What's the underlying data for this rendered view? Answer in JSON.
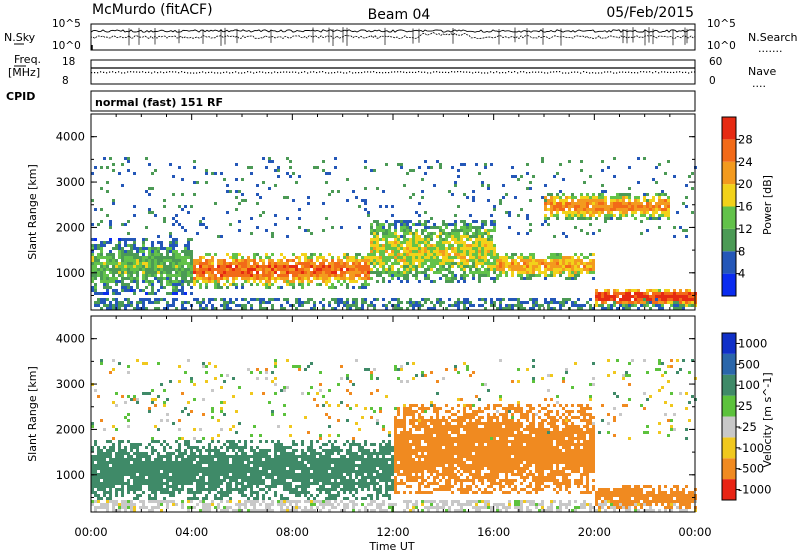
{
  "header": {
    "station": "McMurdo (fitACF)",
    "beam": "Beam 04",
    "date": "05/Feb/2015"
  },
  "params": {
    "nsky_label": "N.Sky",
    "nsearch_label": "N.Search",
    "nsearch_marker": ".......",
    "freq_label_1": "Freq.",
    "freq_label_2": "[MHz]",
    "nave_label": "Nave",
    "nave_marker": "....",
    "cpid_label": "CPID",
    "cpid_value": "normal (fast) 151 RF",
    "noise_ticks": [
      "10^5",
      "10^0"
    ],
    "freq_ticks": [
      "18",
      "8"
    ],
    "nave_ticks": [
      "60",
      "0"
    ]
  },
  "chart_data": [
    {
      "type": "heatmap",
      "title": "",
      "xlabel": "",
      "ylabel": "Slant Range [km]",
      "xlim": [
        0,
        24
      ],
      "ylim": [
        180,
        4500
      ],
      "y_ticks": [
        "1000",
        "2000",
        "3000",
        "4000"
      ],
      "colorbar": {
        "label": "Power [dB]",
        "ticks": [
          "4",
          "8",
          "12",
          "16",
          "20",
          "24",
          "28"
        ],
        "colors": [
          "#0a2cf0",
          "#2457b8",
          "#4b9a55",
          "#62c24a",
          "#f2d21a",
          "#f39a1e",
          "#f26a18",
          "#e62a12"
        ]
      },
      "bands": [
        {
          "x": [
            0,
            4
          ],
          "y": [
            550,
            1800
          ],
          "power": 10
        },
        {
          "x": [
            4,
            11
          ],
          "y": [
            700,
            1500
          ],
          "power": 22
        },
        {
          "x": [
            11,
            16
          ],
          "y": [
            800,
            2200
          ],
          "power": 14
        },
        {
          "x": [
            16,
            20
          ],
          "y": [
            900,
            1500
          ],
          "power": 18
        },
        {
          "x": [
            20,
            24
          ],
          "y": [
            300,
            700
          ],
          "power": 26
        },
        {
          "x": [
            18,
            23
          ],
          "y": [
            2200,
            2800
          ],
          "power": 20
        }
      ]
    },
    {
      "type": "heatmap",
      "title": "",
      "xlabel": "Time UT",
      "ylabel": "Slant Range [km]",
      "xlim": [
        0,
        24
      ],
      "ylim": [
        180,
        4500
      ],
      "x_ticks": [
        "00:00",
        "04:00",
        "08:00",
        "12:00",
        "16:00",
        "20:00",
        "00:00"
      ],
      "y_ticks": [
        "1000",
        "2000",
        "3000",
        "4000"
      ],
      "colorbar": {
        "label": "Velocity [m s^-1]",
        "ticks": [
          "1000",
          "500",
          "100",
          "25",
          "-25",
          "-100",
          "-500",
          "-1000"
        ],
        "colors": [
          "#1030c8",
          "#2a66aa",
          "#3f8a68",
          "#5cc23c",
          "#c8c8c8",
          "#f0c81e",
          "#f08a20",
          "#e82414"
        ]
      },
      "bands": [
        {
          "x": [
            0,
            12
          ],
          "y": [
            500,
            1800
          ],
          "velocity": 300
        },
        {
          "x": [
            12,
            20
          ],
          "y": [
            600,
            2600
          ],
          "velocity": -200
        },
        {
          "x": [
            20,
            24
          ],
          "y": [
            300,
            800
          ],
          "velocity": -300
        }
      ]
    }
  ]
}
